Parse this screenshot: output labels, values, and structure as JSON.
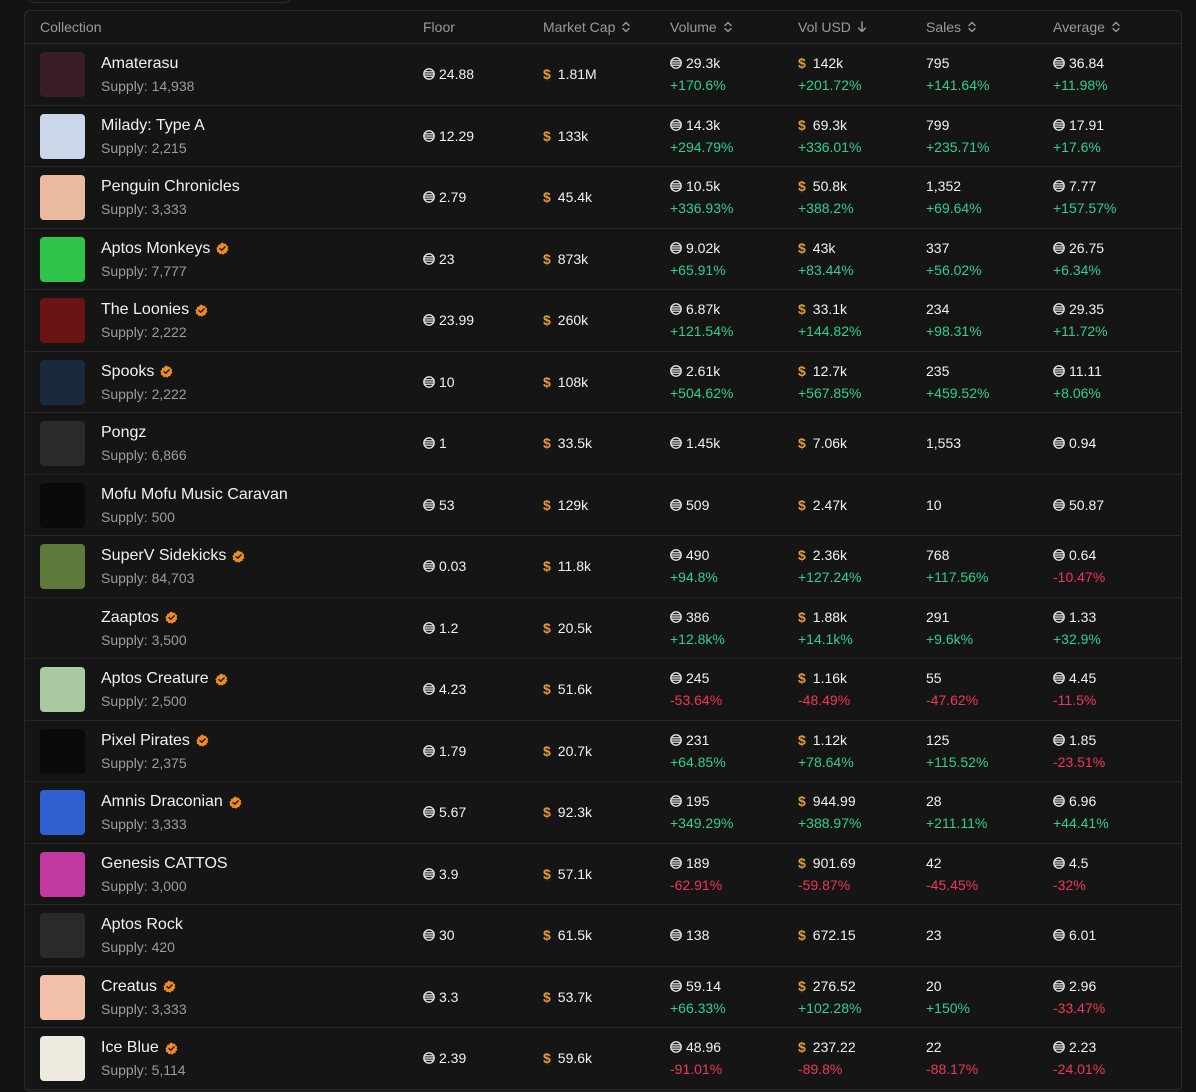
{
  "columns": {
    "collection": "Collection",
    "floor": "Floor",
    "market_cap": "Market Cap",
    "volume": "Volume",
    "vol_usd": "Vol USD",
    "sales": "Sales",
    "average": "Average"
  },
  "colors": {
    "positive": "#2fd08b",
    "negative": "#f0365e",
    "usd_accent": "#e39a3b",
    "verified": "#f08a24"
  },
  "rows": [
    {
      "name": "Amaterasu",
      "verified": false,
      "supply": "Supply: 14,938",
      "floor": "24.88",
      "mcap": "1.81M",
      "volume": "29.3k",
      "volume_change": "+170.6%",
      "vol_usd": "142k",
      "vol_usd_change": "+201.72%",
      "sales": "795",
      "sales_change": "+141.64%",
      "avg": "36.84",
      "avg_change": "+11.98%",
      "thumb": "#3a1d25"
    },
    {
      "name": "Milady: Type A",
      "verified": false,
      "supply": "Supply: 2,215",
      "floor": "12.29",
      "mcap": "133k",
      "volume": "14.3k",
      "volume_change": "+294.79%",
      "vol_usd": "69.3k",
      "vol_usd_change": "+336.01%",
      "sales": "799",
      "sales_change": "+235.71%",
      "avg": "17.91",
      "avg_change": "+17.6%",
      "thumb": "#c9d7e8"
    },
    {
      "name": "Penguin Chronicles",
      "verified": false,
      "supply": "Supply: 3,333",
      "floor": "2.79",
      "mcap": "45.4k",
      "volume": "10.5k",
      "volume_change": "+336.93%",
      "vol_usd": "50.8k",
      "vol_usd_change": "+388.2%",
      "sales": "1,352",
      "sales_change": "+69.64%",
      "avg": "7.77",
      "avg_change": "+157.57%",
      "thumb": "#e9b9a0"
    },
    {
      "name": "Aptos Monkeys",
      "verified": true,
      "supply": "Supply: 7,777",
      "floor": "23",
      "mcap": "873k",
      "volume": "9.02k",
      "volume_change": "+65.91%",
      "vol_usd": "43k",
      "vol_usd_change": "+83.44%",
      "sales": "337",
      "sales_change": "+56.02%",
      "avg": "26.75",
      "avg_change": "+6.34%",
      "thumb": "#2fc44a"
    },
    {
      "name": "The Loonies",
      "verified": true,
      "supply": "Supply: 2,222",
      "floor": "23.99",
      "mcap": "260k",
      "volume": "6.87k",
      "volume_change": "+121.54%",
      "vol_usd": "33.1k",
      "vol_usd_change": "+144.82%",
      "sales": "234",
      "sales_change": "+98.31%",
      "avg": "29.35",
      "avg_change": "+11.72%",
      "thumb": "#6a1414"
    },
    {
      "name": "Spooks",
      "verified": true,
      "supply": "Supply: 2,222",
      "floor": "10",
      "mcap": "108k",
      "volume": "2.61k",
      "volume_change": "+504.62%",
      "vol_usd": "12.7k",
      "vol_usd_change": "+567.85%",
      "sales": "235",
      "sales_change": "+459.52%",
      "avg": "11.11",
      "avg_change": "+8.06%",
      "thumb": "#1b2a3a"
    },
    {
      "name": "Pongz",
      "verified": false,
      "supply": "Supply: 6,866",
      "floor": "1",
      "mcap": "33.5k",
      "volume": "1.45k",
      "volume_change": "",
      "vol_usd": "7.06k",
      "vol_usd_change": "",
      "sales": "1,553",
      "sales_change": "",
      "avg": "0.94",
      "avg_change": "",
      "thumb": "#2a2a2a"
    },
    {
      "name": "Mofu Mofu Music Caravan",
      "verified": false,
      "supply": "Supply: 500",
      "floor": "53",
      "mcap": "129k",
      "volume": "509",
      "volume_change": "",
      "vol_usd": "2.47k",
      "vol_usd_change": "",
      "sales": "10",
      "sales_change": "",
      "avg": "50.87",
      "avg_change": "",
      "thumb": "#0a0a0a"
    },
    {
      "name": "SuperV Sidekicks",
      "verified": true,
      "supply": "Supply: 84,703",
      "floor": "0.03",
      "mcap": "11.8k",
      "volume": "490",
      "volume_change": "+94.8%",
      "vol_usd": "2.36k",
      "vol_usd_change": "+127.24%",
      "sales": "768",
      "sales_change": "+117.56%",
      "avg": "0.64",
      "avg_change": "-10.47%",
      "thumb": "#5d7a3a"
    },
    {
      "name": "Zaaptos",
      "verified": true,
      "supply": "Supply: 3,500",
      "floor": "1.2",
      "mcap": "20.5k",
      "volume": "386",
      "volume_change": "+12.8k%",
      "vol_usd": "1.88k",
      "vol_usd_change": "+14.1k%",
      "sales": "291",
      "sales_change": "+9.6k%",
      "avg": "1.33",
      "avg_change": "+32.9%",
      "thumb": "#151515"
    },
    {
      "name": "Aptos Creature",
      "verified": true,
      "supply": "Supply: 2,500",
      "floor": "4.23",
      "mcap": "51.6k",
      "volume": "245",
      "volume_change": "-53.64%",
      "vol_usd": "1.16k",
      "vol_usd_change": "-48.49%",
      "sales": "55",
      "sales_change": "-47.62%",
      "avg": "4.45",
      "avg_change": "-11.5%",
      "thumb": "#a9c9a0"
    },
    {
      "name": "Pixel Pirates",
      "verified": true,
      "supply": "Supply: 2,375",
      "floor": "1.79",
      "mcap": "20.7k",
      "volume": "231",
      "volume_change": "+64.85%",
      "vol_usd": "1.12k",
      "vol_usd_change": "+78.64%",
      "sales": "125",
      "sales_change": "+115.52%",
      "avg": "1.85",
      "avg_change": "-23.51%",
      "thumb": "#0a0a0a"
    },
    {
      "name": "Amnis Draconian",
      "verified": true,
      "supply": "Supply: 3,333",
      "floor": "5.67",
      "mcap": "92.3k",
      "volume": "195",
      "volume_change": "+349.29%",
      "vol_usd": "944.99",
      "vol_usd_change": "+388.97%",
      "sales": "28",
      "sales_change": "+211.11%",
      "avg": "6.96",
      "avg_change": "+44.41%",
      "thumb": "#2f5fd0"
    },
    {
      "name": "Genesis CATTOS",
      "verified": false,
      "supply": "Supply: 3,000",
      "floor": "3.9",
      "mcap": "57.1k",
      "volume": "189",
      "volume_change": "-62.91%",
      "vol_usd": "901.69",
      "vol_usd_change": "-59.87%",
      "sales": "42",
      "sales_change": "-45.45%",
      "avg": "4.5",
      "avg_change": "-32%",
      "thumb": "#c23aa0"
    },
    {
      "name": "Aptos Rock",
      "verified": false,
      "supply": "Supply: 420",
      "floor": "30",
      "mcap": "61.5k",
      "volume": "138",
      "volume_change": "",
      "vol_usd": "672.15",
      "vol_usd_change": "",
      "sales": "23",
      "sales_change": "",
      "avg": "6.01",
      "avg_change": "",
      "thumb": "#2a2a2a"
    },
    {
      "name": "Creatus",
      "verified": true,
      "supply": "Supply: 3,333",
      "floor": "3.3",
      "mcap": "53.7k",
      "volume": "59.14",
      "volume_change": "+66.33%",
      "vol_usd": "276.52",
      "vol_usd_change": "+102.28%",
      "sales": "20",
      "sales_change": "+150%",
      "avg": "2.96",
      "avg_change": "-33.47%",
      "thumb": "#f2c0a8"
    },
    {
      "name": "Ice Blue",
      "verified": true,
      "supply": "Supply: 5,114",
      "floor": "2.39",
      "mcap": "59.6k",
      "volume": "48.96",
      "volume_change": "-91.01%",
      "vol_usd": "237.22",
      "vol_usd_change": "-89.8%",
      "sales": "22",
      "sales_change": "-88.17%",
      "avg": "2.23",
      "avg_change": "-24.01%",
      "thumb": "#efeae0"
    }
  ]
}
